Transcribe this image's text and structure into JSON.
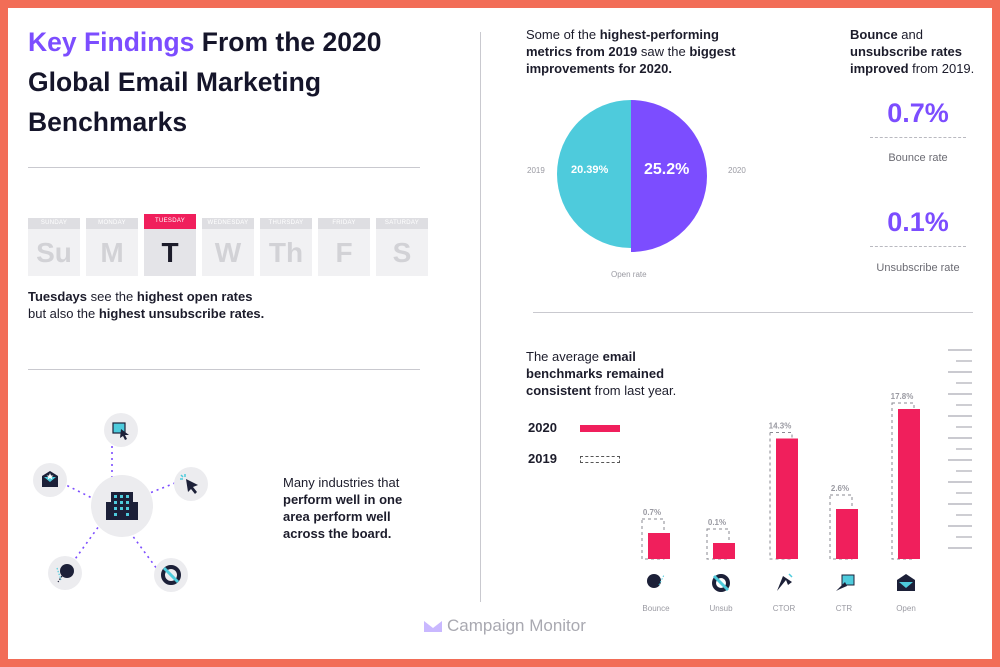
{
  "title": {
    "accent": "Key Findings",
    "rest": " From the 2020 Global Email Marketing Benchmarks"
  },
  "days": [
    {
      "short": "Su",
      "long": "SUNDAY",
      "active": false
    },
    {
      "short": "M",
      "long": "MONDAY",
      "active": false
    },
    {
      "short": "T",
      "long": "TUESDAY",
      "active": true
    },
    {
      "short": "W",
      "long": "WEDNESDAY",
      "active": false
    },
    {
      "short": "Th",
      "long": "THURSDAY",
      "active": false
    },
    {
      "short": "F",
      "long": "FRIDAY",
      "active": false
    },
    {
      "short": "S",
      "long": "SATURDAY",
      "active": false
    }
  ],
  "tuesday_text": {
    "b1": "Tuesdays",
    "t1": " see the ",
    "b2": "highest open rates",
    "t2": "but also the ",
    "b3": "highest unsubscribe rates."
  },
  "industries_text": {
    "t1": "Many industries that",
    "b1": "perform well in one",
    "b2": "area perform well",
    "b3": "across the board."
  },
  "pie_text": {
    "t1": "Some of the ",
    "b1": "highest-performing",
    "b2": "metrics from 2019",
    "t2": " saw the ",
    "b3": "biggest",
    "b4": "improvements for 2020."
  },
  "pie": {
    "left_year": "2019",
    "right_year": "2020",
    "left_value": "20.39%",
    "right_value": "25.2%",
    "caption": "Open rate",
    "left_color": "#4ecbdc",
    "right_color": "#7c4dff"
  },
  "rates_text": {
    "b1": "Bounce",
    "t1": " and",
    "b2": "unsubscribe rates",
    "b3": "improved",
    "t2": " from 2019."
  },
  "bounce": {
    "value": "0.7%",
    "label": "Bounce rate"
  },
  "unsub": {
    "value": "0.1%",
    "label": "Unsubscribe rate"
  },
  "avg_text": {
    "t1": "The average ",
    "b1": "email",
    "b2": "benchmarks remained",
    "b3": "consistent",
    "t2": " from last year."
  },
  "legend": {
    "y2020": "2020",
    "y2019": "2019",
    "color2020": "#f01f5c"
  },
  "chart_data": {
    "type": "bar",
    "categories": [
      "Bounce",
      "Unsub",
      "CTOR",
      "CTR",
      "Open"
    ],
    "series": [
      {
        "name": "2020",
        "values": [
          0.7,
          0.1,
          14.3,
          2.6,
          17.8
        ]
      }
    ],
    "value_labels": [
      "0.7%",
      "0.1%",
      "14.3%",
      "2.6%",
      "17.8%"
    ],
    "color": "#f01f5c"
  },
  "brand": "Campaign Monitor",
  "icons": [
    "building-icon",
    "envelope-icon",
    "cursor-icon",
    "chat-bubble-icon",
    "life-ring-icon"
  ]
}
